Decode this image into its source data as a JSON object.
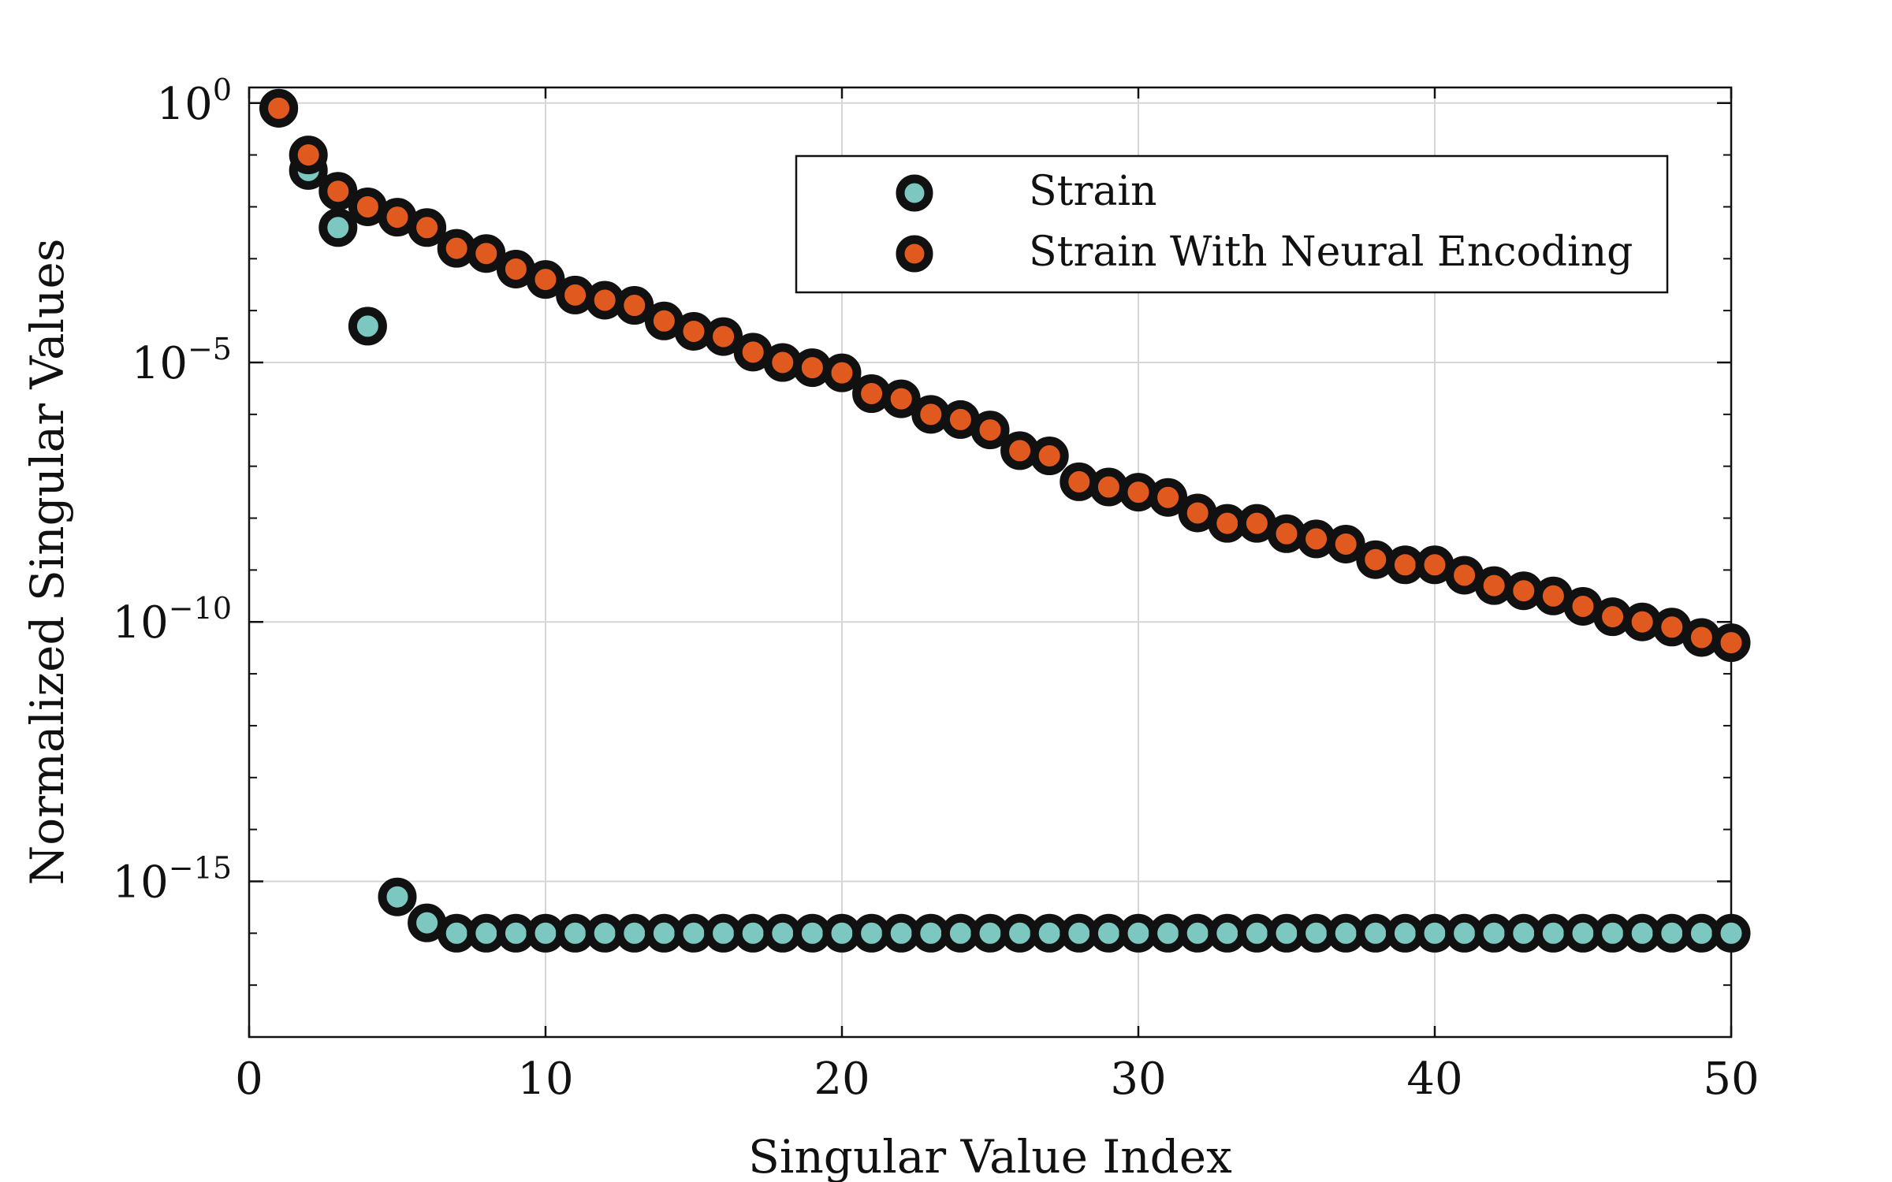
{
  "chart_data": {
    "type": "scatter",
    "title": "",
    "xlabel": "Singular Value Index",
    "ylabel": "Normalized Singular Values",
    "xlim": [
      0,
      50
    ],
    "ylim_exponent": [
      -18,
      0.3
    ],
    "yscale": "log",
    "grid": true,
    "legend_position": "top-right",
    "x_ticks": [
      0,
      10,
      20,
      30,
      40,
      50
    ],
    "y_ticks": [
      {
        "base": "10",
        "exp": "0",
        "value_exp": 0
      },
      {
        "base": "10",
        "exp": "−5",
        "value_exp": -5
      },
      {
        "base": "10",
        "exp": "−10",
        "value_exp": -10
      },
      {
        "base": "10",
        "exp": "−15",
        "value_exp": -15
      }
    ],
    "x": [
      1,
      2,
      3,
      4,
      5,
      6,
      7,
      8,
      9,
      10,
      11,
      12,
      13,
      14,
      15,
      16,
      17,
      18,
      19,
      20,
      21,
      22,
      23,
      24,
      25,
      26,
      27,
      28,
      29,
      30,
      31,
      32,
      33,
      34,
      35,
      36,
      37,
      38,
      39,
      40,
      41,
      42,
      43,
      44,
      45,
      46,
      47,
      48,
      49,
      50
    ],
    "series": [
      {
        "name": "Strain",
        "color": "#7cc8c0",
        "log10_values": [
          -0.1,
          -1.3,
          -2.4,
          -4.3,
          -15.3,
          -15.8,
          -16.0,
          -16.0,
          -16.0,
          -16.0,
          -16.0,
          -16.0,
          -16.0,
          -16.0,
          -16.0,
          -16.0,
          -16.0,
          -16.0,
          -16.0,
          -16.0,
          -16.0,
          -16.0,
          -16.0,
          -16.0,
          -16.0,
          -16.0,
          -16.0,
          -16.0,
          -16.0,
          -16.0,
          -16.0,
          -16.0,
          -16.0,
          -16.0,
          -16.0,
          -16.0,
          -16.0,
          -16.0,
          -16.0,
          -16.0,
          -16.0,
          -16.0,
          -16.0,
          -16.0,
          -16.0,
          -16.0,
          -16.0,
          -16.0,
          -16.0,
          -16.0
        ]
      },
      {
        "name": "Strain With Neural Encoding",
        "color": "#e05a1f",
        "log10_values": [
          -0.1,
          -1.0,
          -1.7,
          -2.0,
          -2.2,
          -2.4,
          -2.8,
          -2.9,
          -3.2,
          -3.4,
          -3.7,
          -3.8,
          -3.9,
          -4.2,
          -4.4,
          -4.5,
          -4.8,
          -5.0,
          -5.1,
          -5.2,
          -5.6,
          -5.7,
          -6.0,
          -6.1,
          -6.3,
          -6.7,
          -6.8,
          -7.3,
          -7.4,
          -7.5,
          -7.6,
          -7.9,
          -8.1,
          -8.1,
          -8.3,
          -8.4,
          -8.5,
          -8.8,
          -8.9,
          -8.9,
          -9.1,
          -9.3,
          -9.4,
          -9.5,
          -9.7,
          -9.9,
          -10.0,
          -10.1,
          -10.3,
          -10.4
        ]
      }
    ]
  }
}
